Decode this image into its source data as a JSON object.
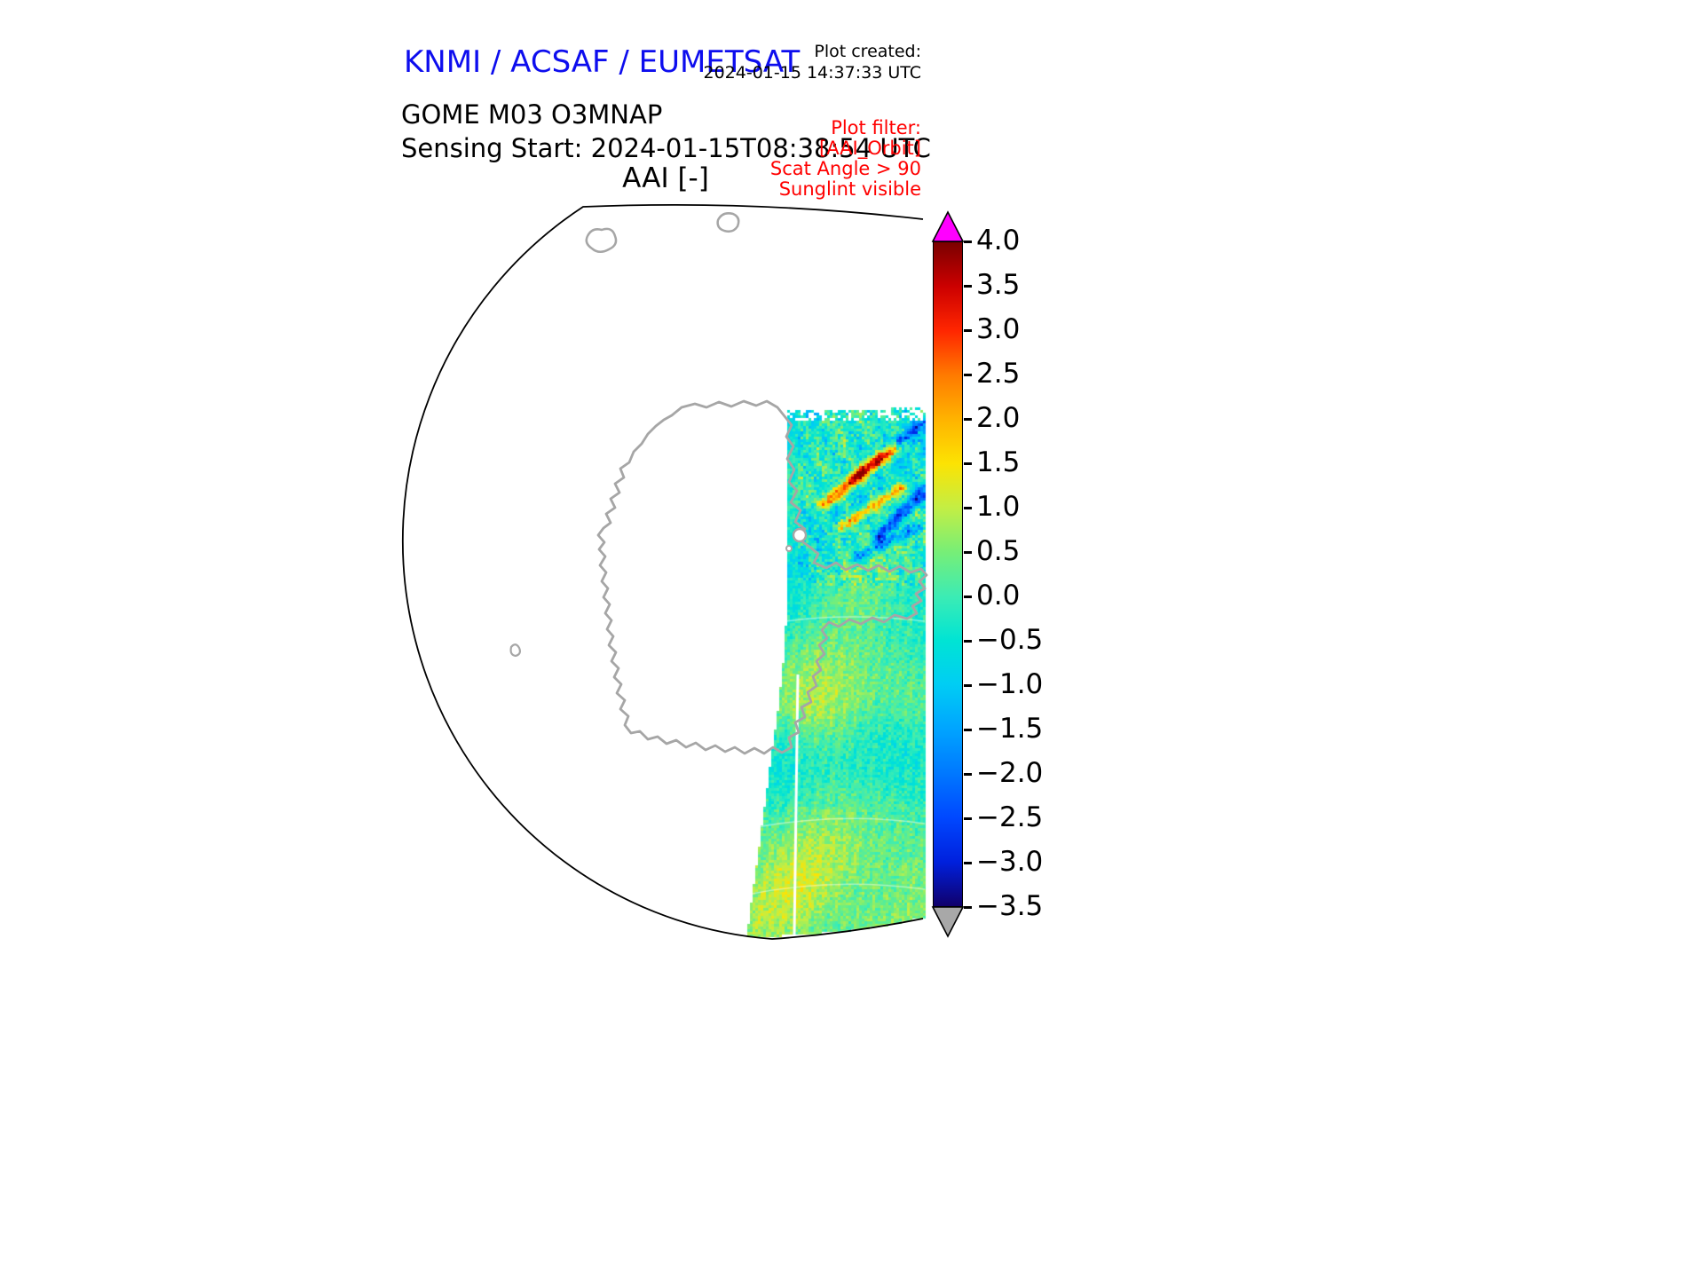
{
  "header": {
    "organization": "KNMI / ACSAF / EUMETSAT",
    "organization_color": "#0d0dee",
    "plot_created_label": "Plot created:",
    "plot_created_value": "2024-01-15 14:37:33 UTC",
    "product": "GOME M03 O3MNAP",
    "sensing_start": "Sensing Start: 2024-01-15T08:38:54 UTC",
    "plot_title": "AAI [-]"
  },
  "plot_filter": {
    "label": "Plot filter:",
    "lines": [
      "[AAI_Orbit]",
      "Scat Angle > 90",
      "Sunglint visible"
    ],
    "color": "#ff0000"
  },
  "colorbar": {
    "range": [
      -3.5,
      4.0
    ],
    "ticks": [
      "4.0",
      "3.5",
      "3.0",
      "2.5",
      "2.0",
      "1.5",
      "1.0",
      "0.5",
      "0.0",
      "−0.5",
      "−1.0",
      "−1.5",
      "−2.0",
      "−2.5",
      "−3.0",
      "−3.5"
    ],
    "tick_values": [
      4.0,
      3.5,
      3.0,
      2.5,
      2.0,
      1.5,
      1.0,
      0.5,
      0.0,
      -0.5,
      -1.0,
      -1.5,
      -2.0,
      -2.5,
      -3.0,
      -3.5
    ],
    "over_arrow_color": "#ff00ff",
    "under_arrow_color": "#a8a8a8",
    "stops": [
      {
        "value": -3.5,
        "color": "#10006b"
      },
      {
        "value": -3.0,
        "color": "#0020dd"
      },
      {
        "value": -2.5,
        "color": "#0048ff"
      },
      {
        "value": -2.0,
        "color": "#0078ff"
      },
      {
        "value": -1.5,
        "color": "#00a4ff"
      },
      {
        "value": -1.0,
        "color": "#00cdf4"
      },
      {
        "value": -0.5,
        "color": "#00e4d4"
      },
      {
        "value": 0.0,
        "color": "#3cecb4"
      },
      {
        "value": 0.5,
        "color": "#77ee77"
      },
      {
        "value": 1.0,
        "color": "#c3ee44"
      },
      {
        "value": 1.5,
        "color": "#fce303"
      },
      {
        "value": 2.0,
        "color": "#ffb300"
      },
      {
        "value": 2.5,
        "color": "#ff7a00"
      },
      {
        "value": 3.0,
        "color": "#ff2600"
      },
      {
        "value": 3.5,
        "color": "#cc0000"
      },
      {
        "value": 4.0,
        "color": "#7a0000"
      }
    ]
  },
  "chart_data": {
    "type": "heatmap",
    "title": "AAI [-]",
    "product": "GOME M03 O3MNAP",
    "sensing_start": "2024-01-15T08:38:54 UTC",
    "plot_created": "2024-01-15 14:37:33 UTC",
    "variable": "AAI",
    "units": "-",
    "value_range": [
      -3.5,
      4.0
    ],
    "colorbar_ticks": [
      4.0,
      3.5,
      3.0,
      2.5,
      2.0,
      1.5,
      1.0,
      0.5,
      0.0,
      -0.5,
      -1.0,
      -1.5,
      -2.0,
      -2.5,
      -3.0,
      -3.5
    ],
    "colorbar_extend": "both",
    "projection": "polar view centered on Antarctica",
    "map_features": [
      "Antarctica coastline (gray outline)",
      "small offshore islands (gray outlines)"
    ],
    "filters_applied": [
      "AAI_Orbit",
      "Scat Angle > 90",
      "Sunglint visible"
    ],
    "swath_summary": {
      "coverage": "single orbit swath occupying the right part of the map, from upper right down to the bottom edge",
      "background_values": "mostly between -1.0 and +1.0 (cyan to green colors)",
      "notable_features": [
        "diagonal streaks up to about +3 (orange/red) in the upper part of the swath",
        "diagonal streaks down to about -2.5 (dark blue) in the upper part of the swath",
        "yellowish patches around +1 scattered through the lower swath",
        "narrow white data-gap seam running down the lower half of the swath"
      ]
    }
  }
}
